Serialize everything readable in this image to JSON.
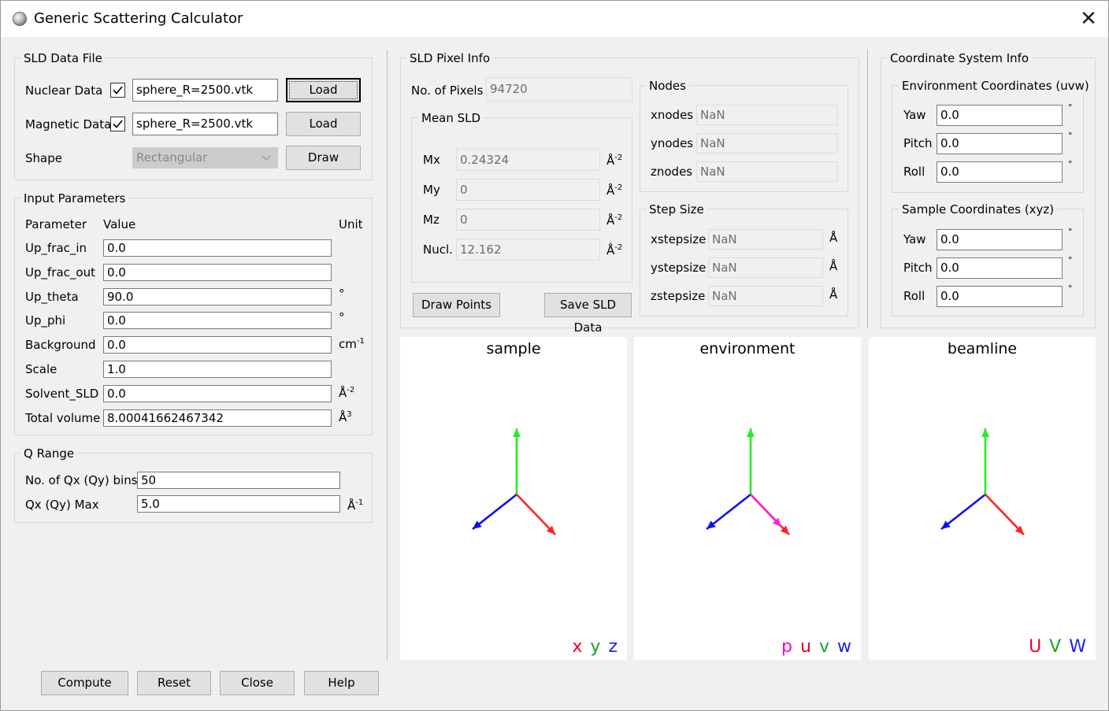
{
  "window": {
    "title": "Generic Scattering Calculator",
    "close_glyph": "✕"
  },
  "sld_file": {
    "title": "SLD Data File",
    "nuclear_label": "Nuclear Data",
    "nuclear_file": "sphere_R=2500.vtk",
    "magnetic_label": "Magnetic Data",
    "magnetic_file": "sphere_R=2500.vtk",
    "shape_label": "Shape",
    "shape_value": "Rectangular",
    "load_label": "Load",
    "draw_label": "Draw"
  },
  "input_params": {
    "title": "Input Parameters",
    "col_parameter": "Parameter",
    "col_value": "Value",
    "col_unit": "Unit",
    "rows": [
      {
        "name": "Up_frac_in",
        "value": "0.0",
        "unit": "",
        "sup": ""
      },
      {
        "name": "Up_frac_out",
        "value": "0.0",
        "unit": "",
        "sup": ""
      },
      {
        "name": "Up_theta",
        "value": "90.0",
        "unit": "°",
        "sup": ""
      },
      {
        "name": "Up_phi",
        "value": "0.0",
        "unit": "°",
        "sup": ""
      },
      {
        "name": "Background",
        "value": "0.0",
        "unit": "cm",
        "sup": "-1"
      },
      {
        "name": "Scale",
        "value": "1.0",
        "unit": "",
        "sup": ""
      },
      {
        "name": "Solvent_SLD",
        "value": "0.0",
        "unit": "Å",
        "sup": "-2"
      },
      {
        "name": "Total volume",
        "value": "8.00041662467342",
        "unit": "Å",
        "sup": "3"
      }
    ]
  },
  "q_range": {
    "title": "Q Range",
    "bins_label": "No. of Qx (Qy) bins",
    "bins_value": "50",
    "max_label": "Qx (Qy) Max",
    "max_value": "5.0",
    "max_unit": "Å",
    "max_sup": "-1"
  },
  "pixel_info": {
    "title": "SLD Pixel Info",
    "num_pixels_label": "No. of Pixels",
    "num_pixels_value": "94720",
    "mean_sld_title": "Mean SLD",
    "mean": [
      {
        "name": "Mx",
        "value": "0.24324",
        "unit": "Å",
        "sup": "-2"
      },
      {
        "name": "My",
        "value": "0",
        "unit": "Å",
        "sup": "-2"
      },
      {
        "name": "Mz",
        "value": "0",
        "unit": "Å",
        "sup": "-2"
      },
      {
        "name": "Nucl.",
        "value": "12.162",
        "unit": "Å",
        "sup": "-2"
      }
    ],
    "nodes_title": "Nodes",
    "nodes": [
      {
        "name": "xnodes",
        "value": "NaN"
      },
      {
        "name": "ynodes",
        "value": "NaN"
      },
      {
        "name": "znodes",
        "value": "NaN"
      }
    ],
    "step_title": "Step Size",
    "steps": [
      {
        "name": "xstepsize",
        "value": "NaN",
        "unit": "Å"
      },
      {
        "name": "ystepsize",
        "value": "NaN",
        "unit": "Å"
      },
      {
        "name": "zstepsize",
        "value": "NaN",
        "unit": "Å"
      }
    ],
    "draw_points_label": "Draw Points",
    "save_sld_label": "Save SLD Data"
  },
  "coord_info": {
    "title": "Coordinate System Info",
    "env_title": "Environment Coordinates (uvw)",
    "env": [
      {
        "name": "Yaw",
        "value": "0.0",
        "unit": "°"
      },
      {
        "name": "Pitch",
        "value": "0.0",
        "unit": "°"
      },
      {
        "name": "Roll",
        "value": "0.0",
        "unit": "°"
      }
    ],
    "sample_title": "Sample Coordinates (xyz)",
    "sample": [
      {
        "name": "Yaw",
        "value": "0.0",
        "unit": "°"
      },
      {
        "name": "Pitch",
        "value": "0.0",
        "unit": "°"
      },
      {
        "name": "Roll",
        "value": "0.0",
        "unit": "°"
      }
    ]
  },
  "plots": [
    {
      "title": "sample",
      "legend": [
        {
          "t": "x",
          "c": "#e8002a"
        },
        {
          "t": "y",
          "c": "#1fa01f"
        },
        {
          "t": "z",
          "c": "#2020e0"
        }
      ],
      "extra_magenta": false
    },
    {
      "title": "environment",
      "legend": [
        {
          "t": "p",
          "c": "#ff00cc"
        },
        {
          "t": "u",
          "c": "#e8002a"
        },
        {
          "t": "v",
          "c": "#1fa01f"
        },
        {
          "t": "w",
          "c": "#2020e0"
        }
      ],
      "extra_magenta": true
    },
    {
      "title": "beamline",
      "legend": [
        {
          "t": "U",
          "c": "#e8002a"
        },
        {
          "t": "V",
          "c": "#1fa01f"
        },
        {
          "t": "W",
          "c": "#2020e0"
        }
      ],
      "extra_magenta": false
    }
  ],
  "axis_colors": {
    "x": "#ff2222",
    "y": "#22ee22",
    "z": "#1111ee",
    "p": "#ff22cc"
  },
  "buttons": {
    "compute": "Compute",
    "reset": "Reset",
    "close": "Close",
    "help": "Help"
  }
}
